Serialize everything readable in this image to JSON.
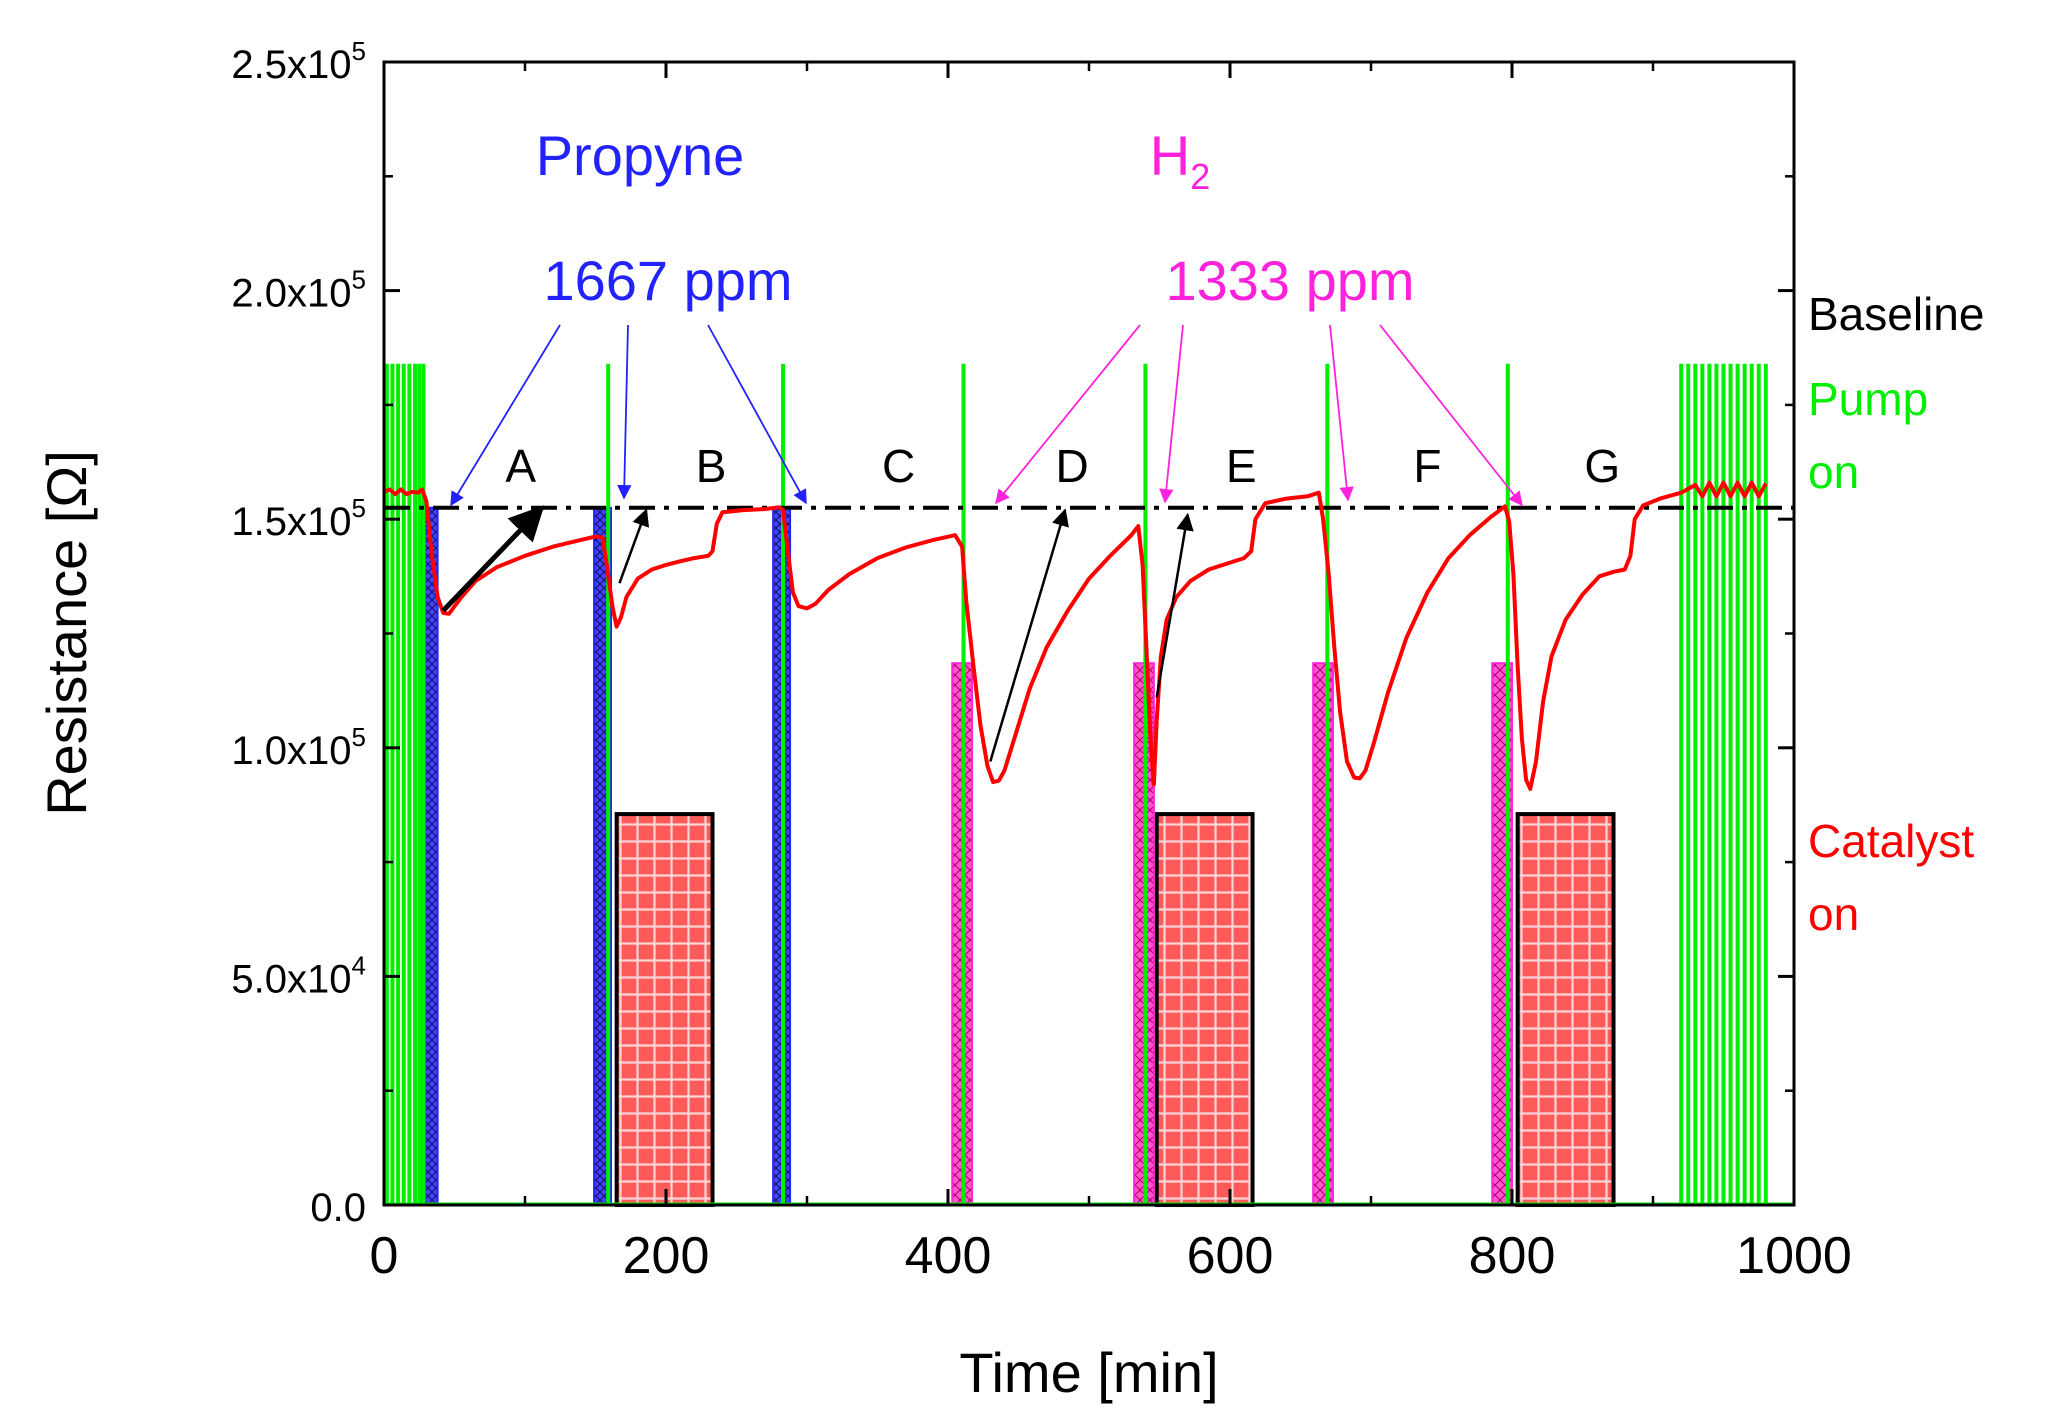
{
  "chart_data": {
    "type": "line",
    "xlabel": "Time [min]",
    "ylabel_main": "Resistance [",
    "ylabel_sym": "Ω",
    "ylabel_end": "]",
    "xlim": [
      0,
      1000
    ],
    "ylim": [
      0,
      250000
    ],
    "x_ticks": [
      {
        "value": 0,
        "label": "0"
      },
      {
        "value": 200,
        "label": "200"
      },
      {
        "value": 400,
        "label": "400"
      },
      {
        "value": 600,
        "label": "600"
      },
      {
        "value": 800,
        "label": "800"
      },
      {
        "value": 1000,
        "label": "1000"
      }
    ],
    "y_ticks": [
      {
        "value": 0,
        "mant": "0.0",
        "exp": ""
      },
      {
        "value": 50000,
        "mant": "5.0x10",
        "exp": "4"
      },
      {
        "value": 100000,
        "mant": "1.0x10",
        "exp": "5"
      },
      {
        "value": 150000,
        "mant": "1.5x10",
        "exp": "5"
      },
      {
        "value": 200000,
        "mant": "2.0x10",
        "exp": "5"
      },
      {
        "value": 250000,
        "mant": "2.5x10",
        "exp": "5"
      }
    ],
    "baseline_value": 152500,
    "colors": {
      "resistance": "#ff0000",
      "pump": "#00ee00",
      "propyne": "#3333ff",
      "h2": "#ff33cc",
      "catalyst": "#ff5555",
      "baseline": "#000000"
    },
    "resistance_points": [
      [
        0,
        156000
      ],
      [
        4,
        156500
      ],
      [
        8,
        155500
      ],
      [
        12,
        156500
      ],
      [
        16,
        155500
      ],
      [
        20,
        156000
      ],
      [
        24,
        155800
      ],
      [
        27,
        156500
      ],
      [
        30,
        154000
      ],
      [
        34,
        142000
      ],
      [
        38,
        133000
      ],
      [
        42,
        129500
      ],
      [
        46,
        129300
      ],
      [
        55,
        133000
      ],
      [
        65,
        136500
      ],
      [
        80,
        139500
      ],
      [
        100,
        142000
      ],
      [
        120,
        144000
      ],
      [
        140,
        145500
      ],
      [
        150,
        146200
      ],
      [
        155,
        146000
      ],
      [
        158,
        140000
      ],
      [
        162,
        131000
      ],
      [
        165,
        126500
      ],
      [
        168,
        128500
      ],
      [
        172,
        133000
      ],
      [
        180,
        137000
      ],
      [
        190,
        139000
      ],
      [
        200,
        140000
      ],
      [
        210,
        140800
      ],
      [
        220,
        141500
      ],
      [
        230,
        142000
      ],
      [
        233,
        143000
      ],
      [
        236,
        149000
      ],
      [
        240,
        151500
      ],
      [
        255,
        152000
      ],
      [
        270,
        152200
      ],
      [
        280,
        152600
      ],
      [
        283,
        152000
      ],
      [
        286,
        144000
      ],
      [
        290,
        134000
      ],
      [
        294,
        131000
      ],
      [
        300,
        130500
      ],
      [
        306,
        131500
      ],
      [
        315,
        134500
      ],
      [
        330,
        138000
      ],
      [
        350,
        141500
      ],
      [
        370,
        143800
      ],
      [
        390,
        145500
      ],
      [
        405,
        146500
      ],
      [
        410,
        144000
      ],
      [
        413,
        132000
      ],
      [
        418,
        118000
      ],
      [
        423,
        105000
      ],
      [
        428,
        96000
      ],
      [
        432,
        92500
      ],
      [
        436,
        92800
      ],
      [
        440,
        95000
      ],
      [
        448,
        103000
      ],
      [
        458,
        113000
      ],
      [
        470,
        122000
      ],
      [
        485,
        130000
      ],
      [
        500,
        137000
      ],
      [
        515,
        142000
      ],
      [
        530,
        146500
      ],
      [
        535,
        148500
      ],
      [
        538,
        140000
      ],
      [
        541,
        120000
      ],
      [
        544,
        100000
      ],
      [
        546,
        92000
      ],
      [
        548,
        106000
      ],
      [
        551,
        120000
      ],
      [
        555,
        128000
      ],
      [
        562,
        133000
      ],
      [
        572,
        136500
      ],
      [
        585,
        139000
      ],
      [
        600,
        140500
      ],
      [
        610,
        141500
      ],
      [
        615,
        143000
      ],
      [
        618,
        150000
      ],
      [
        625,
        153500
      ],
      [
        640,
        154500
      ],
      [
        655,
        155000
      ],
      [
        663,
        155800
      ],
      [
        666,
        150000
      ],
      [
        670,
        138000
      ],
      [
        674,
        122000
      ],
      [
        678,
        108000
      ],
      [
        683,
        97000
      ],
      [
        688,
        93500
      ],
      [
        692,
        93300
      ],
      [
        696,
        95000
      ],
      [
        702,
        101000
      ],
      [
        712,
        112000
      ],
      [
        725,
        124000
      ],
      [
        740,
        134000
      ],
      [
        755,
        141500
      ],
      [
        770,
        146500
      ],
      [
        785,
        150500
      ],
      [
        795,
        152800
      ],
      [
        798,
        149500
      ],
      [
        801,
        138000
      ],
      [
        804,
        118000
      ],
      [
        807,
        102000
      ],
      [
        810,
        93000
      ],
      [
        813,
        91000
      ],
      [
        817,
        97000
      ],
      [
        822,
        110000
      ],
      [
        828,
        120000
      ],
      [
        838,
        128000
      ],
      [
        850,
        133500
      ],
      [
        862,
        137500
      ],
      [
        872,
        138500
      ],
      [
        880,
        139000
      ],
      [
        884,
        142000
      ],
      [
        887,
        150000
      ],
      [
        893,
        153000
      ],
      [
        905,
        154500
      ],
      [
        920,
        155800
      ],
      [
        930,
        157500
      ],
      [
        935,
        155000
      ],
      [
        940,
        158000
      ],
      [
        945,
        155000
      ],
      [
        950,
        158000
      ],
      [
        955,
        155000
      ],
      [
        960,
        158000
      ],
      [
        965,
        155000
      ],
      [
        970,
        158000
      ],
      [
        975,
        155000
      ],
      [
        980,
        157800
      ]
    ],
    "pump_lines": [
      2,
      6,
      10,
      14,
      18,
      22,
      25,
      28,
      159,
      283,
      411,
      540,
      669,
      797,
      920,
      925,
      930,
      935,
      940,
      945,
      950,
      955,
      960,
      965,
      970,
      975,
      980
    ],
    "pump_top": 184000,
    "propyne_windows": [
      [
        26,
        38
      ],
      [
        149,
        161
      ],
      [
        276,
        288
      ]
    ],
    "propyne_top": 152500,
    "h2_windows": [
      [
        403,
        417
      ],
      [
        532,
        546
      ],
      [
        659,
        673
      ],
      [
        786,
        800
      ]
    ],
    "h2_top": 118500,
    "catalyst_windows": [
      [
        165,
        233
      ],
      [
        548,
        616
      ],
      [
        804,
        872
      ]
    ],
    "catalyst_top": 85500,
    "rise_arrows": [
      [
        [
          42,
          130000
        ],
        [
          112,
          152500
        ]
      ],
      [
        [
          167,
          136000
        ],
        [
          186,
          152000
        ]
      ],
      [
        [
          430,
          97000
        ],
        [
          483,
          152000
        ]
      ],
      [
        [
          548,
          111000
        ],
        [
          570,
          151000
        ]
      ]
    ],
    "segments": [
      {
        "label": "A",
        "x": 97
      },
      {
        "label": "B",
        "x": 232
      },
      {
        "label": "C",
        "x": 365
      },
      {
        "label": "D",
        "x": 488
      },
      {
        "label": "E",
        "x": 608
      },
      {
        "label": "F",
        "x": 740
      },
      {
        "label": "G",
        "x": 864
      }
    ],
    "propyne_title": "Propyne",
    "propyne_conc": "1667 ppm",
    "h2_main": "H",
    "h2_sub": "2",
    "h2_conc": "1333 ppm",
    "legend": {
      "baseline": "Baseline",
      "pump_1": "Pump",
      "pump_2": "on",
      "catalyst_1": "Catalyst",
      "catalyst_2": "on"
    }
  }
}
